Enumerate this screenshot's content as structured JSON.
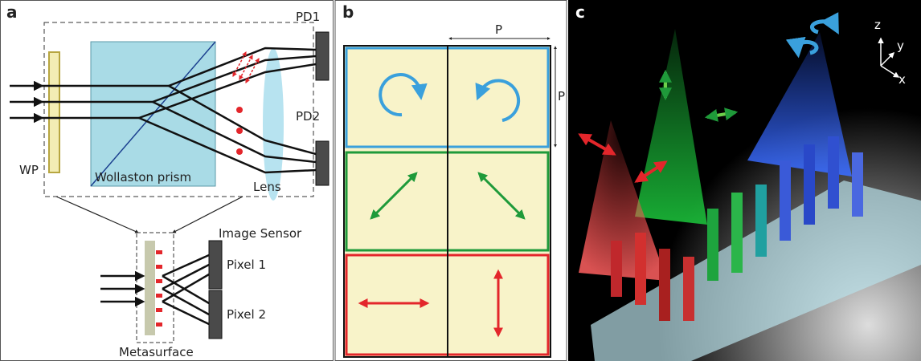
{
  "panel_a": {
    "label": "a",
    "wp": "WP",
    "prism": "Wollaston prism",
    "lens": "Lens",
    "pd1": "PD1",
    "pd2": "PD2",
    "sensor": "Image Sensor",
    "pixel1": "Pixel 1",
    "pixel2": "Pixel 2",
    "metasurface": "Metasurface"
  },
  "panel_b": {
    "label": "b",
    "period_x": "P",
    "period_y": "P"
  },
  "panel_c": {
    "label": "c",
    "axes": {
      "z": "z",
      "y": "y",
      "x": "x"
    }
  }
}
